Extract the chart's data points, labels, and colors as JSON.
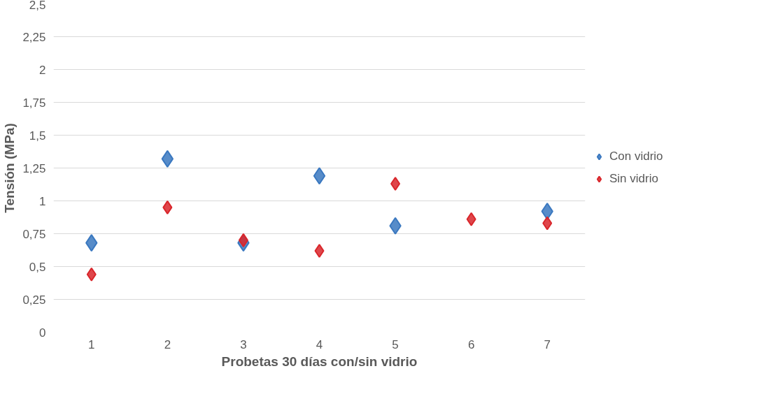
{
  "chart_data": {
    "type": "scatter",
    "xlabel": "Probetas 30 días con/sin vidrio",
    "ylabel": "Tensión (MPa)",
    "categories": [
      "1",
      "2",
      "3",
      "4",
      "5",
      "6",
      "7"
    ],
    "series": [
      {
        "name": "Con vidrio",
        "color": "#3a78c0",
        "values": [
          0.68,
          1.32,
          0.68,
          1.19,
          0.81,
          null,
          0.92
        ]
      },
      {
        "name": "Sin vidrio",
        "color": "#d9262b",
        "values": [
          0.44,
          0.95,
          0.7,
          0.62,
          1.13,
          0.86,
          0.83
        ]
      }
    ],
    "ylim": [
      0,
      2.5
    ],
    "yticks": [
      0,
      {
        "value": 0.25,
        "label": "0,25"
      },
      {
        "value": 0.5,
        "label": "0,5"
      },
      {
        "value": 0.75,
        "label": "0,75"
      },
      1,
      {
        "value": 1.25,
        "label": "1,25"
      },
      {
        "value": 1.5,
        "label": "1,5"
      },
      {
        "value": 1.75,
        "label": "1,75"
      },
      2,
      {
        "value": 2.25,
        "label": "2,25"
      },
      {
        "value": 2.5,
        "label": "2,5"
      }
    ],
    "grid": "y",
    "legend": "right",
    "marker": "diamond"
  }
}
